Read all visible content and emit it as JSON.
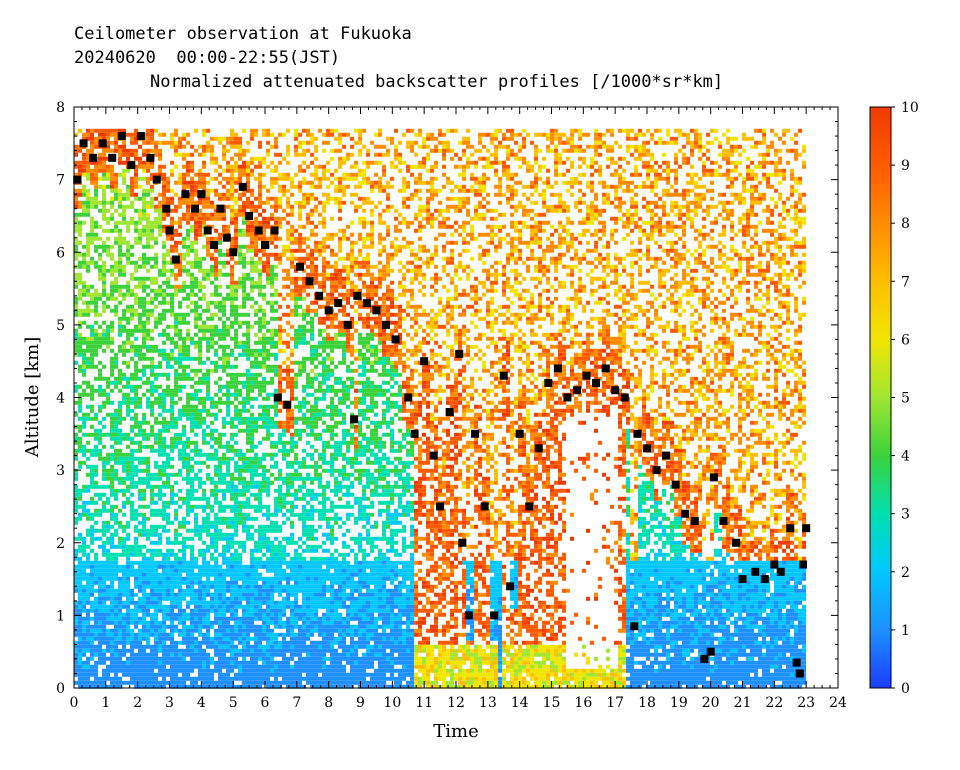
{
  "figure": {
    "title": "Ceilometer observation at Fukuoka",
    "date_range": "20240620  00:00-22:55(JST)",
    "subtitle": "Normalized attenuated backscatter profiles [/1000*sr*km]"
  },
  "chart_data": {
    "type": "heatmap",
    "title": "Ceilometer observation at Fukuoka",
    "subtitle": "Normalized attenuated backscatter profiles [/1000*sr*km]",
    "xlabel": "Time",
    "ylabel": "Altitude [km]",
    "xlim": [
      0,
      24
    ],
    "ylim": [
      0,
      8
    ],
    "x_ticks": [
      "0",
      "1",
      "2",
      "3",
      "4",
      "5",
      "6",
      "7",
      "8",
      "9",
      "10",
      "11",
      "12",
      "13",
      "14",
      "15",
      "16",
      "17",
      "18",
      "19",
      "20",
      "21",
      "22",
      "23",
      "24"
    ],
    "y_ticks": [
      "0",
      "1",
      "2",
      "3",
      "4",
      "5",
      "6",
      "7",
      "8"
    ],
    "colorbar": {
      "range": [
        0,
        10
      ],
      "ticks": [
        "0",
        "1",
        "2",
        "3",
        "4",
        "5",
        "6",
        "7",
        "8",
        "9",
        "10"
      ],
      "colors": [
        "#1a3cff",
        "#1e90ff",
        "#00c8ff",
        "#00e0b0",
        "#3cd23c",
        "#a0e632",
        "#f0e600",
        "#ffbe00",
        "#ff8c00",
        "#ff5a00",
        "#f03c00"
      ]
    },
    "observation_end_hour": 22.92,
    "observation_top_km": 7.7,
    "cloud_base_markers": [
      {
        "x": 0.1,
        "y": 7.0
      },
      {
        "x": 0.3,
        "y": 7.5
      },
      {
        "x": 0.6,
        "y": 7.3
      },
      {
        "x": 0.9,
        "y": 7.5
      },
      {
        "x": 1.2,
        "y": 7.3
      },
      {
        "x": 1.5,
        "y": 7.6
      },
      {
        "x": 1.8,
        "y": 7.2
      },
      {
        "x": 2.1,
        "y": 7.6
      },
      {
        "x": 2.4,
        "y": 7.3
      },
      {
        "x": 2.6,
        "y": 7.0
      },
      {
        "x": 2.9,
        "y": 6.6
      },
      {
        "x": 3.0,
        "y": 6.3
      },
      {
        "x": 3.2,
        "y": 5.9
      },
      {
        "x": 3.5,
        "y": 6.8
      },
      {
        "x": 3.8,
        "y": 6.6
      },
      {
        "x": 4.0,
        "y": 6.8
      },
      {
        "x": 4.2,
        "y": 6.3
      },
      {
        "x": 4.4,
        "y": 6.1
      },
      {
        "x": 4.6,
        "y": 6.6
      },
      {
        "x": 4.8,
        "y": 6.2
      },
      {
        "x": 5.0,
        "y": 6.0
      },
      {
        "x": 5.3,
        "y": 6.9
      },
      {
        "x": 5.5,
        "y": 6.5
      },
      {
        "x": 5.8,
        "y": 6.3
      },
      {
        "x": 6.0,
        "y": 6.1
      },
      {
        "x": 6.3,
        "y": 6.3
      },
      {
        "x": 6.4,
        "y": 4.0
      },
      {
        "x": 6.7,
        "y": 3.9
      },
      {
        "x": 7.1,
        "y": 5.8
      },
      {
        "x": 7.4,
        "y": 5.6
      },
      {
        "x": 7.7,
        "y": 5.4
      },
      {
        "x": 8.0,
        "y": 5.2
      },
      {
        "x": 8.3,
        "y": 5.3
      },
      {
        "x": 8.6,
        "y": 5.0
      },
      {
        "x": 8.9,
        "y": 5.4
      },
      {
        "x": 8.8,
        "y": 3.7
      },
      {
        "x": 9.2,
        "y": 5.3
      },
      {
        "x": 9.5,
        "y": 5.2
      },
      {
        "x": 9.8,
        "y": 5.0
      },
      {
        "x": 10.1,
        "y": 4.8
      },
      {
        "x": 10.5,
        "y": 4.0
      },
      {
        "x": 10.7,
        "y": 3.5
      },
      {
        "x": 11.0,
        "y": 4.5
      },
      {
        "x": 11.3,
        "y": 3.2
      },
      {
        "x": 11.5,
        "y": 2.5
      },
      {
        "x": 11.8,
        "y": 3.8
      },
      {
        "x": 12.1,
        "y": 4.6
      },
      {
        "x": 12.2,
        "y": 2.0
      },
      {
        "x": 12.4,
        "y": 1.0
      },
      {
        "x": 12.6,
        "y": 3.5
      },
      {
        "x": 12.9,
        "y": 2.5
      },
      {
        "x": 13.2,
        "y": 1.0
      },
      {
        "x": 13.5,
        "y": 4.3
      },
      {
        "x": 13.7,
        "y": 1.4
      },
      {
        "x": 14.0,
        "y": 3.5
      },
      {
        "x": 14.3,
        "y": 2.5
      },
      {
        "x": 14.6,
        "y": 3.3
      },
      {
        "x": 14.9,
        "y": 4.2
      },
      {
        "x": 15.2,
        "y": 4.4
      },
      {
        "x": 15.5,
        "y": 4.0
      },
      {
        "x": 15.8,
        "y": 4.1
      },
      {
        "x": 16.1,
        "y": 4.3
      },
      {
        "x": 16.4,
        "y": 4.2
      },
      {
        "x": 16.7,
        "y": 4.4
      },
      {
        "x": 17.0,
        "y": 4.1
      },
      {
        "x": 17.3,
        "y": 4.0
      },
      {
        "x": 17.6,
        "y": 0.85
      },
      {
        "x": 17.7,
        "y": 3.5
      },
      {
        "x": 18.0,
        "y": 3.3
      },
      {
        "x": 18.3,
        "y": 3.0
      },
      {
        "x": 18.6,
        "y": 3.2
      },
      {
        "x": 18.9,
        "y": 2.8
      },
      {
        "x": 19.2,
        "y": 2.4
      },
      {
        "x": 19.5,
        "y": 2.3
      },
      {
        "x": 19.8,
        "y": 0.4
      },
      {
        "x": 20.0,
        "y": 0.5
      },
      {
        "x": 20.1,
        "y": 2.9
      },
      {
        "x": 20.4,
        "y": 2.3
      },
      {
        "x": 20.8,
        "y": 2.0
      },
      {
        "x": 21.0,
        "y": 1.5
      },
      {
        "x": 21.4,
        "y": 1.6
      },
      {
        "x": 21.7,
        "y": 1.5
      },
      {
        "x": 22.0,
        "y": 1.7
      },
      {
        "x": 22.2,
        "y": 1.6
      },
      {
        "x": 22.5,
        "y": 2.2
      },
      {
        "x": 22.7,
        "y": 0.35
      },
      {
        "x": 22.8,
        "y": 0.2
      },
      {
        "x": 22.9,
        "y": 1.7
      },
      {
        "x": 23.0,
        "y": 2.2
      }
    ]
  }
}
